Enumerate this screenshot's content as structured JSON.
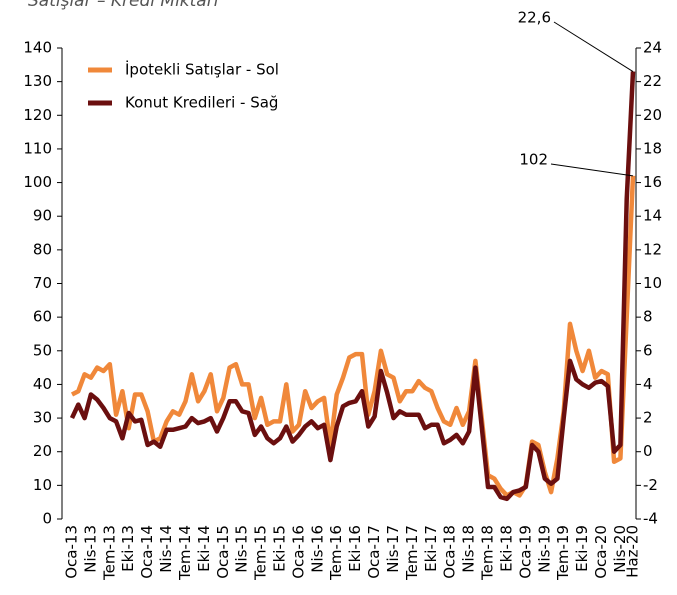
{
  "chart_data": {
    "type": "line",
    "title": "Satışlar – Kredi Miktarı",
    "categories": [
      "Oca-13",
      null,
      null,
      "Nis-13",
      null,
      null,
      "Tem-13",
      null,
      null,
      "Eki-13",
      null,
      null,
      "Oca-14",
      null,
      null,
      "Nis-14",
      null,
      null,
      "Tem-14",
      null,
      null,
      "Eki-14",
      null,
      null,
      "Oca-15",
      null,
      null,
      "Nis-15",
      null,
      null,
      "Tem-15",
      null,
      null,
      "Eki-15",
      null,
      null,
      "Oca-16",
      null,
      null,
      "Nis-16",
      null,
      null,
      "Tem-16",
      null,
      null,
      "Eki-16",
      null,
      null,
      "Oca-17",
      null,
      null,
      "Nis-17",
      null,
      null,
      "Tem-17",
      null,
      null,
      "Eki-17",
      null,
      null,
      "Oca-18",
      null,
      null,
      "Nis-18",
      null,
      null,
      "Tem-18",
      null,
      null,
      "Eki-18",
      null,
      null,
      "Oca-19",
      null,
      null,
      "Nis-19",
      null,
      null,
      "Tem-19",
      null,
      null,
      "Eki-19",
      null,
      null,
      "Oca-20",
      null,
      null,
      "Nis-20",
      null,
      "Haz-20"
    ],
    "series": [
      {
        "name": "İpotekli Satışlar - Sol",
        "color": "#f0883a",
        "values": [
          37,
          38,
          43,
          42,
          45,
          44,
          46,
          31,
          38,
          27,
          37,
          37,
          32,
          23,
          24,
          29,
          32,
          31,
          35,
          43,
          35,
          38,
          43,
          32,
          36,
          45,
          46,
          40,
          40,
          30,
          36,
          28,
          29,
          29,
          40,
          26,
          28,
          38,
          33,
          35,
          36,
          22,
          37,
          42,
          48,
          49,
          49,
          31,
          38,
          50,
          43,
          42,
          35,
          38,
          38,
          41,
          39,
          38,
          33,
          29,
          28,
          33,
          28,
          32,
          47,
          30,
          13,
          12,
          9,
          7,
          8,
          7,
          10,
          23,
          22,
          14,
          8,
          18,
          32,
          58,
          50,
          44,
          50,
          42,
          44,
          43,
          17,
          18,
          60,
          102
        ]
      },
      {
        "name": "Konut Kredileri - Sağ",
        "color": "#6b0f0f",
        "axis": "y2",
        "values": [
          2.0,
          2.8,
          2.0,
          3.4,
          3.1,
          2.6,
          2.0,
          1.8,
          0.8,
          2.3,
          1.8,
          1.9,
          0.4,
          0.6,
          0.3,
          1.3,
          1.3,
          1.4,
          1.5,
          2.0,
          1.7,
          1.8,
          2.0,
          1.2,
          2.0,
          3.0,
          3.0,
          2.4,
          2.3,
          1.0,
          1.5,
          0.8,
          0.5,
          0.8,
          1.5,
          0.6,
          1.0,
          1.5,
          1.8,
          1.4,
          1.6,
          -0.5,
          1.5,
          2.7,
          2.9,
          3.0,
          3.6,
          1.5,
          2.1,
          4.8,
          3.5,
          2.0,
          2.4,
          2.2,
          2.2,
          2.2,
          1.4,
          1.6,
          1.6,
          0.5,
          0.7,
          1.0,
          0.5,
          1.2,
          5.0,
          1.5,
          -2.1,
          -2.1,
          -2.7,
          -2.8,
          -2.4,
          -2.3,
          -2.1,
          0.4,
          0,
          -1.6,
          -1.9,
          -1.6,
          2.0,
          5.4,
          4.3,
          4.0,
          3.8,
          4.1,
          4.2,
          3.9,
          0,
          0.4,
          15,
          22.6
        ]
      }
    ],
    "ylim": [
      0,
      140
    ],
    "yticks": [
      0,
      10,
      20,
      30,
      40,
      50,
      60,
      70,
      80,
      90,
      100,
      110,
      120,
      130,
      140
    ],
    "y2lim": [
      -4,
      24
    ],
    "y2ticks": [
      -4,
      -2,
      0,
      2,
      4,
      6,
      8,
      10,
      12,
      14,
      16,
      18,
      20,
      22,
      24
    ],
    "annotations": [
      {
        "text": "22,6"
      },
      {
        "text": "102"
      }
    ],
    "legend": "upper left"
  }
}
